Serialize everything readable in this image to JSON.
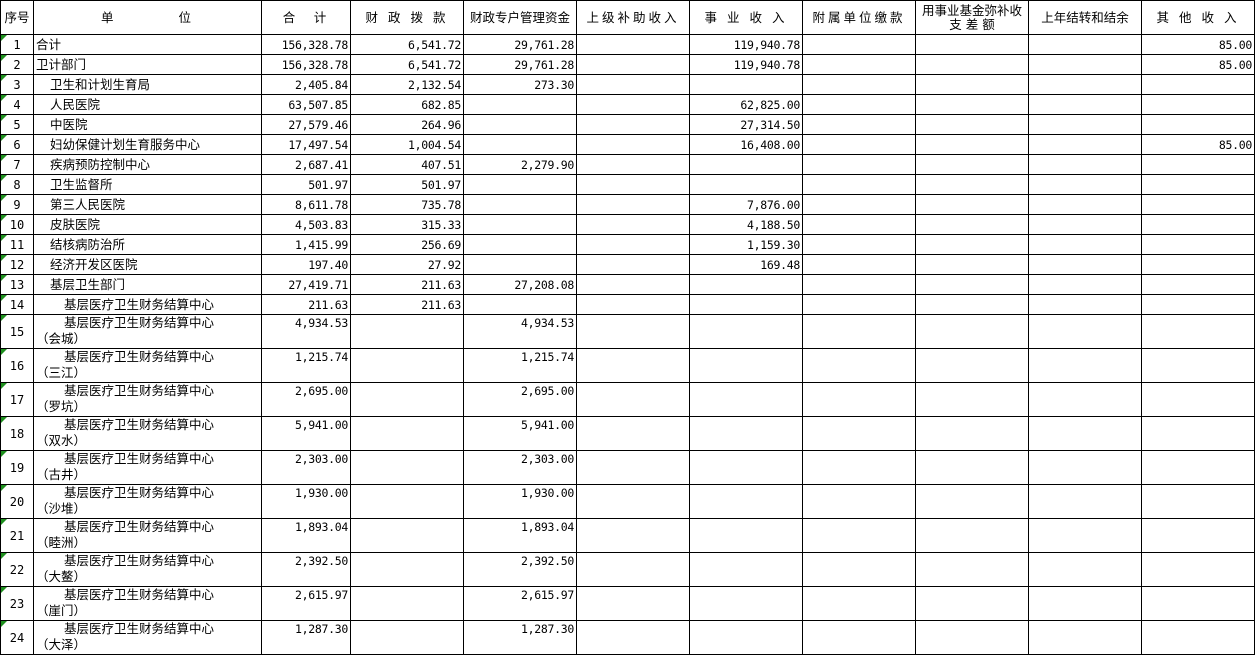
{
  "headers": [
    "序号",
    "单　　　　位",
    "合　计",
    "财 政 拨 款",
    "财政专户管理资金",
    "上级补助收入",
    "事 业 收 入",
    "附属单位缴款",
    "用事业基金弥补收 支 差 额",
    "上年结转和结余",
    "其 他 收 入"
  ],
  "rows": [
    {
      "seq": "1",
      "name": "合计",
      "level": 0,
      "values": [
        "156,328.78",
        "6,541.72",
        "29,761.28",
        "",
        "119,940.78",
        "",
        "",
        "",
        "85.00"
      ]
    },
    {
      "seq": "2",
      "name": "卫计部门",
      "level": 0,
      "values": [
        "156,328.78",
        "6,541.72",
        "29,761.28",
        "",
        "119,940.78",
        "",
        "",
        "",
        "85.00"
      ]
    },
    {
      "seq": "3",
      "name": "卫生和计划生育局",
      "level": 1,
      "values": [
        "2,405.84",
        "2,132.54",
        "273.30",
        "",
        "",
        "",
        "",
        "",
        ""
      ]
    },
    {
      "seq": "4",
      "name": "人民医院",
      "level": 1,
      "values": [
        "63,507.85",
        "682.85",
        "",
        "",
        "62,825.00",
        "",
        "",
        "",
        ""
      ]
    },
    {
      "seq": "5",
      "name": "中医院",
      "level": 1,
      "values": [
        "27,579.46",
        "264.96",
        "",
        "",
        "27,314.50",
        "",
        "",
        "",
        ""
      ]
    },
    {
      "seq": "6",
      "name": "妇幼保健计划生育服务中心",
      "level": 1,
      "values": [
        "17,497.54",
        "1,004.54",
        "",
        "",
        "16,408.00",
        "",
        "",
        "",
        "85.00"
      ]
    },
    {
      "seq": "7",
      "name": "疾病预防控制中心",
      "level": 1,
      "values": [
        "2,687.41",
        "407.51",
        "2,279.90",
        "",
        "",
        "",
        "",
        "",
        ""
      ]
    },
    {
      "seq": "8",
      "name": "卫生监督所",
      "level": 1,
      "values": [
        "501.97",
        "501.97",
        "",
        "",
        "",
        "",
        "",
        "",
        ""
      ]
    },
    {
      "seq": "9",
      "name": "第三人民医院",
      "level": 1,
      "values": [
        "8,611.78",
        "735.78",
        "",
        "",
        "7,876.00",
        "",
        "",
        "",
        ""
      ]
    },
    {
      "seq": "10",
      "name": "皮肤医院",
      "level": 1,
      "values": [
        "4,503.83",
        "315.33",
        "",
        "",
        "4,188.50",
        "",
        "",
        "",
        ""
      ]
    },
    {
      "seq": "11",
      "name": "结核病防治所",
      "level": 1,
      "values": [
        "1,415.99",
        "256.69",
        "",
        "",
        "1,159.30",
        "",
        "",
        "",
        ""
      ]
    },
    {
      "seq": "12",
      "name": "经济开发区医院",
      "level": 1,
      "values": [
        "197.40",
        "27.92",
        "",
        "",
        "169.48",
        "",
        "",
        "",
        ""
      ]
    },
    {
      "seq": "13",
      "name": "基层卫生部门",
      "level": 1,
      "values": [
        "27,419.71",
        "211.63",
        "27,208.08",
        "",
        "",
        "",
        "",
        "",
        ""
      ]
    },
    {
      "seq": "14",
      "name": "基层医疗卫生财务结算中心",
      "level": 2,
      "values": [
        "211.63",
        "211.63",
        "",
        "",
        "",
        "",
        "",
        "",
        ""
      ]
    },
    {
      "seq": "15",
      "name": "基层医疗卫生财务结算中心\n（会城）",
      "level": 2,
      "values": [
        "4,934.53",
        "",
        "4,934.53",
        "",
        "",
        "",
        "",
        "",
        ""
      ]
    },
    {
      "seq": "16",
      "name": "基层医疗卫生财务结算中心\n（三江）",
      "level": 2,
      "values": [
        "1,215.74",
        "",
        "1,215.74",
        "",
        "",
        "",
        "",
        "",
        ""
      ]
    },
    {
      "seq": "17",
      "name": "基层医疗卫生财务结算中心\n（罗坑）",
      "level": 2,
      "values": [
        "2,695.00",
        "",
        "2,695.00",
        "",
        "",
        "",
        "",
        "",
        ""
      ]
    },
    {
      "seq": "18",
      "name": "基层医疗卫生财务结算中心\n（双水）",
      "level": 2,
      "values": [
        "5,941.00",
        "",
        "5,941.00",
        "",
        "",
        "",
        "",
        "",
        ""
      ]
    },
    {
      "seq": "19",
      "name": "基层医疗卫生财务结算中心\n（古井）",
      "level": 2,
      "values": [
        "2,303.00",
        "",
        "2,303.00",
        "",
        "",
        "",
        "",
        "",
        ""
      ]
    },
    {
      "seq": "20",
      "name": "基层医疗卫生财务结算中心\n（沙堆）",
      "level": 2,
      "values": [
        "1,930.00",
        "",
        "1,930.00",
        "",
        "",
        "",
        "",
        "",
        ""
      ]
    },
    {
      "seq": "21",
      "name": "基层医疗卫生财务结算中心\n（睦洲）",
      "level": 2,
      "values": [
        "1,893.04",
        "",
        "1,893.04",
        "",
        "",
        "",
        "",
        "",
        ""
      ]
    },
    {
      "seq": "22",
      "name": "基层医疗卫生财务结算中心\n（大鳌）",
      "level": 2,
      "values": [
        "2,392.50",
        "",
        "2,392.50",
        "",
        "",
        "",
        "",
        "",
        ""
      ]
    },
    {
      "seq": "23",
      "name": "基层医疗卫生财务结算中心\n（崖门）",
      "level": 2,
      "values": [
        "2,615.97",
        "",
        "2,615.97",
        "",
        "",
        "",
        "",
        "",
        ""
      ]
    },
    {
      "seq": "24",
      "name": "基层医疗卫生财务结算中心\n（大泽）",
      "level": 2,
      "values": [
        "1,287.30",
        "",
        "1,287.30",
        "",
        "",
        "",
        "",
        "",
        ""
      ]
    }
  ],
  "colors": {
    "grid": "#000000",
    "cell_marker": "#1e8f1e"
  }
}
